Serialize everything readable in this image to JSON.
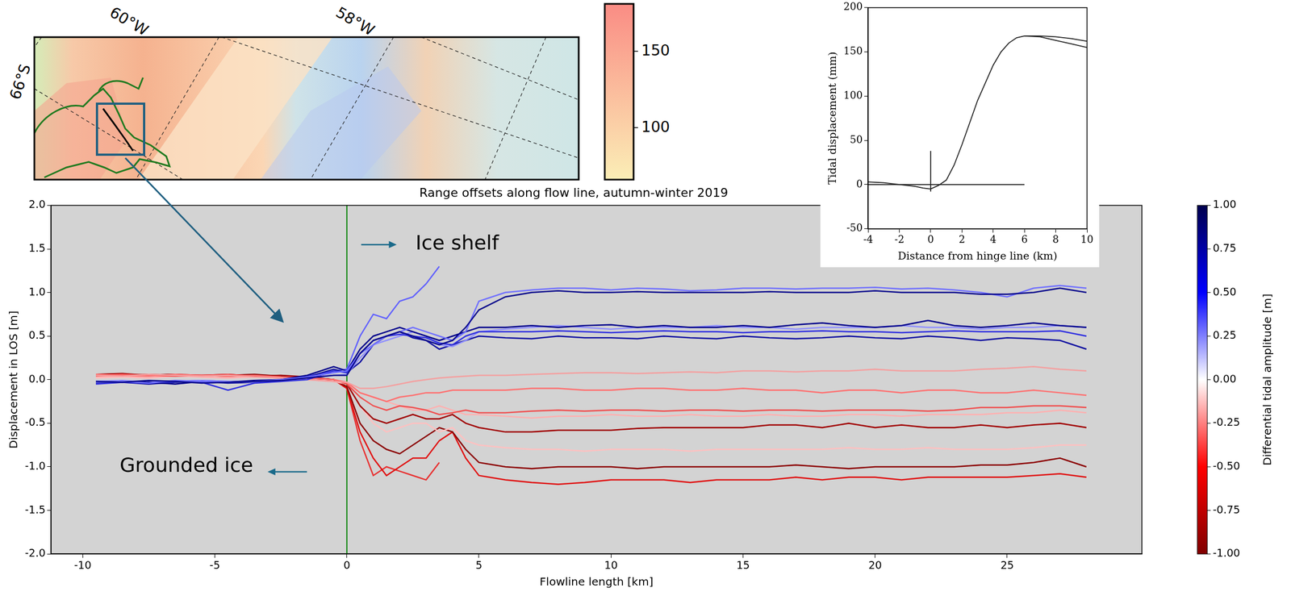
{
  "chart_data": [
    {
      "type": "line",
      "title": "Range offsets along flow line, autumn-winter 2019",
      "x_label": "Flowline length [km]",
      "y_label": "Displacement in LOS [m]",
      "xlim": [
        -11.2,
        30.1
      ],
      "xticks": [
        -10,
        -5,
        0,
        5,
        10,
        15,
        20,
        25
      ],
      "ylim": [
        -2,
        2
      ],
      "yticks": [
        {
          "value": -2,
          "label": "-2.0"
        },
        {
          "value": -1.5,
          "label": "-1.5"
        },
        {
          "value": -1,
          "label": "-1.0"
        },
        {
          "value": -0.5,
          "label": "-0.5"
        },
        {
          "value": 0,
          "label": "0.0"
        },
        {
          "value": 0.5,
          "label": "0.5"
        },
        {
          "value": 1,
          "label": "1.0"
        },
        {
          "value": 1.5,
          "label": "1.5"
        },
        {
          "value": 2,
          "label": "2.0"
        }
      ],
      "grid": false,
      "x": [
        -9.5,
        -8.5,
        -7.5,
        -6.5,
        -5.5,
        -4.5,
        -3.5,
        -2.5,
        -1.5,
        -0.5,
        0,
        0.5,
        1,
        1.5,
        2,
        2.5,
        3,
        3.5,
        4,
        4.5,
        5,
        6,
        7,
        8,
        9,
        10,
        11,
        12,
        13,
        14,
        15,
        16,
        17,
        18,
        19,
        20,
        21,
        22,
        23,
        24,
        25,
        26,
        27,
        28
      ],
      "series": [
        {
          "color": "#0a0a8c",
          "values": [
            -0.02,
            -0.03,
            -0.01,
            -0.02,
            -0.04,
            -0.03,
            -0.02,
            -0.01,
            0.02,
            0.05,
            0.05,
            0.3,
            0.45,
            0.5,
            0.55,
            0.5,
            0.45,
            0.4,
            0.45,
            0.6,
            0.8,
            0.95,
            1.0,
            1.02,
            1.0,
            1.0,
            1.01,
            1.0,
            1.0,
            1.0,
            1.0,
            1.01,
            1.0,
            1.0,
            1.0,
            1.02,
            1.0,
            1.0,
            1.0,
            0.98,
            0.98,
            1.0,
            1.05,
            1.0
          ]
        },
        {
          "color": "#7070ff",
          "values": [
            -0.03,
            -0.02,
            -0.04,
            -0.01,
            -0.02,
            -0.03,
            -0.02,
            0.0,
            0.03,
            0.08,
            0.1,
            0.3,
            0.4,
            0.5,
            0.55,
            0.6,
            0.55,
            0.5,
            0.45,
            0.55,
            0.9,
            1.0,
            1.03,
            1.05,
            1.05,
            1.03,
            1.05,
            1.04,
            1.02,
            1.03,
            1.05,
            1.05,
            1.04,
            1.05,
            1.05,
            1.06,
            1.04,
            1.05,
            1.03,
            1.0,
            0.95,
            1.05,
            1.08,
            1.05
          ]
        },
        {
          "color": "#00008b",
          "values": [
            -0.03,
            -0.02,
            -0.03,
            -0.05,
            -0.02,
            -0.03,
            -0.01,
            0.0,
            0.05,
            0.15,
            0.1,
            0.35,
            0.5,
            0.55,
            0.6,
            0.55,
            0.5,
            0.45,
            0.5,
            0.55,
            0.6,
            0.6,
            0.62,
            0.6,
            0.62,
            0.63,
            0.6,
            0.62,
            0.6,
            0.6,
            0.62,
            0.6,
            0.63,
            0.65,
            0.62,
            0.6,
            0.62,
            0.68,
            0.62,
            0.6,
            0.62,
            0.65,
            0.62,
            0.6
          ]
        },
        {
          "color": "#3030e0",
          "values": [
            -0.05,
            -0.03,
            -0.04,
            -0.02,
            -0.03,
            -0.12,
            -0.04,
            -0.02,
            0.0,
            0.1,
            0.08,
            0.3,
            0.45,
            0.5,
            0.52,
            0.5,
            0.48,
            0.42,
            0.4,
            0.5,
            0.55,
            0.55,
            0.55,
            0.56,
            0.55,
            0.54,
            0.55,
            0.56,
            0.55,
            0.55,
            0.54,
            0.55,
            0.55,
            0.56,
            0.55,
            0.55,
            0.54,
            0.55,
            0.56,
            0.55,
            0.55,
            0.55,
            0.56,
            0.5
          ]
        },
        {
          "color": "#9090ff",
          "values": [
            -0.02,
            -0.01,
            -0.03,
            -0.02,
            -0.01,
            -0.02,
            -0.03,
            0.0,
            0.02,
            0.05,
            0.06,
            0.25,
            0.4,
            0.45,
            0.5,
            0.55,
            0.5,
            0.4,
            0.38,
            0.45,
            0.55,
            0.58,
            0.6,
            0.62,
            0.6,
            0.58,
            0.6,
            0.6,
            0.6,
            0.62,
            0.6,
            0.6,
            0.58,
            0.6,
            0.6,
            0.6,
            0.62,
            0.6,
            0.6,
            0.58,
            0.6,
            0.6,
            0.62,
            0.6
          ]
        },
        {
          "color": "#1010a0",
          "values": [
            -0.04,
            -0.03,
            -0.05,
            -0.03,
            -0.02,
            -0.04,
            -0.03,
            -0.01,
            0.03,
            0.12,
            0.08,
            0.2,
            0.4,
            0.5,
            0.55,
            0.48,
            0.45,
            0.35,
            0.4,
            0.45,
            0.5,
            0.48,
            0.47,
            0.5,
            0.48,
            0.48,
            0.47,
            0.5,
            0.48,
            0.47,
            0.5,
            0.48,
            0.47,
            0.48,
            0.5,
            0.48,
            0.47,
            0.5,
            0.48,
            0.45,
            0.48,
            0.47,
            0.45,
            0.35
          ]
        },
        {
          "color": "#6060ff",
          "values": [
            -0.02,
            -0.02,
            -0.03,
            -0.02,
            -0.01,
            -0.02,
            -0.02,
            0.0,
            0.04,
            0.1,
            0.12,
            0.5,
            0.75,
            0.7,
            0.9,
            0.95,
            1.1,
            1.3,
            null,
            null,
            null,
            null,
            null,
            null,
            null,
            null,
            null,
            null,
            null,
            null,
            null,
            null,
            null,
            null,
            null,
            null,
            null,
            null,
            null,
            null,
            null,
            null,
            null,
            null
          ]
        },
        {
          "color": "#f4a0a0",
          "values": [
            0.05,
            0.04,
            0.06,
            0.05,
            0.04,
            0.05,
            0.03,
            0.02,
            0.0,
            -0.02,
            -0.03,
            -0.1,
            -0.1,
            -0.08,
            -0.05,
            -0.02,
            0.0,
            0.02,
            0.03,
            0.04,
            0.05,
            0.05,
            0.06,
            0.07,
            0.08,
            0.08,
            0.07,
            0.08,
            0.09,
            0.08,
            0.1,
            0.1,
            0.09,
            0.1,
            0.1,
            0.12,
            0.1,
            0.1,
            0.1,
            0.12,
            0.13,
            0.15,
            0.12,
            0.1
          ]
        },
        {
          "color": "#ff7070",
          "values": [
            0.06,
            0.05,
            0.04,
            0.06,
            0.05,
            0.04,
            0.05,
            0.03,
            0.02,
            0.0,
            -0.03,
            -0.15,
            -0.2,
            -0.25,
            -0.2,
            -0.18,
            -0.15,
            -0.15,
            -0.12,
            -0.12,
            -0.12,
            -0.12,
            -0.1,
            -0.1,
            -0.12,
            -0.12,
            -0.1,
            -0.1,
            -0.12,
            -0.12,
            -0.1,
            -0.12,
            -0.12,
            -0.15,
            -0.12,
            -0.12,
            -0.15,
            -0.12,
            -0.12,
            -0.15,
            -0.15,
            -0.12,
            -0.15,
            -0.18
          ]
        },
        {
          "color": "#f05050",
          "values": [
            0.05,
            0.06,
            0.05,
            0.04,
            0.05,
            0.06,
            0.04,
            0.03,
            0.02,
            0.0,
            -0.05,
            -0.2,
            -0.3,
            -0.35,
            -0.3,
            -0.32,
            -0.35,
            -0.4,
            -0.38,
            -0.35,
            -0.38,
            -0.38,
            -0.36,
            -0.35,
            -0.36,
            -0.35,
            -0.35,
            -0.36,
            -0.35,
            -0.35,
            -0.36,
            -0.35,
            -0.35,
            -0.36,
            -0.35,
            -0.35,
            -0.35,
            -0.36,
            -0.35,
            -0.32,
            -0.32,
            -0.3,
            -0.3,
            -0.32
          ]
        },
        {
          "color": "#ffb0b0",
          "values": [
            0.03,
            0.04,
            0.02,
            0.05,
            0.03,
            0.02,
            0.04,
            0.02,
            0.0,
            -0.02,
            -0.04,
            -0.15,
            -0.2,
            -0.25,
            -0.3,
            -0.35,
            -0.35,
            -0.3,
            -0.35,
            -0.4,
            -0.4,
            -0.42,
            -0.44,
            -0.42,
            -0.42,
            -0.4,
            -0.42,
            -0.42,
            -0.4,
            -0.42,
            -0.42,
            -0.4,
            -0.42,
            -0.42,
            -0.4,
            -0.4,
            -0.42,
            -0.4,
            -0.4,
            -0.4,
            -0.38,
            -0.38,
            -0.35,
            -0.38
          ]
        },
        {
          "color": "#a00000",
          "values": [
            0.06,
            0.07,
            0.05,
            0.06,
            0.05,
            0.06,
            0.04,
            0.05,
            0.03,
            0.0,
            -0.05,
            -0.3,
            -0.45,
            -0.5,
            -0.45,
            -0.4,
            -0.45,
            -0.45,
            -0.4,
            -0.5,
            -0.55,
            -0.6,
            -0.6,
            -0.58,
            -0.58,
            -0.58,
            -0.56,
            -0.55,
            -0.55,
            -0.55,
            -0.55,
            -0.52,
            -0.52,
            -0.55,
            -0.5,
            -0.55,
            -0.52,
            -0.55,
            -0.55,
            -0.52,
            -0.55,
            -0.52,
            -0.5,
            -0.55
          ]
        },
        {
          "color": "#ffc0c0",
          "values": [
            0.02,
            0.03,
            0.02,
            0.04,
            0.03,
            0.02,
            0.03,
            0.02,
            0.0,
            -0.02,
            -0.05,
            -0.3,
            -0.5,
            -0.6,
            -0.55,
            -0.5,
            -0.5,
            -0.6,
            -0.55,
            -0.7,
            -0.75,
            -0.78,
            -0.8,
            -0.8,
            -0.82,
            -0.8,
            -0.8,
            -0.8,
            -0.82,
            -0.8,
            -0.8,
            -0.8,
            -0.8,
            -0.8,
            -0.78,
            -0.8,
            -0.8,
            -0.78,
            -0.8,
            -0.8,
            -0.8,
            -0.78,
            -0.75,
            -0.75
          ]
        },
        {
          "color": "#8b0000",
          "values": [
            0.05,
            0.06,
            0.05,
            0.06,
            0.04,
            0.05,
            0.06,
            0.04,
            0.03,
            0.0,
            -0.08,
            -0.5,
            -0.7,
            -0.8,
            -0.85,
            -0.75,
            -0.65,
            -0.55,
            -0.6,
            -0.8,
            -0.95,
            -1.0,
            -1.02,
            -1.0,
            -1.0,
            -1.0,
            -1.02,
            -1.0,
            -1.0,
            -1.0,
            -1.0,
            -1.0,
            -0.98,
            -1.0,
            -1.02,
            -1.0,
            -1.0,
            -1.0,
            -1.0,
            -0.98,
            -0.98,
            -0.95,
            -0.9,
            -1.0
          ]
        },
        {
          "color": "#e01010",
          "values": [
            0.04,
            0.05,
            0.06,
            0.05,
            0.05,
            0.04,
            0.05,
            0.03,
            0.02,
            0.0,
            -0.1,
            -0.6,
            -0.9,
            -1.1,
            -1.0,
            -0.9,
            -0.9,
            -0.7,
            -0.6,
            -0.9,
            -1.1,
            -1.15,
            -1.18,
            -1.2,
            -1.18,
            -1.15,
            -1.15,
            -1.15,
            -1.18,
            -1.15,
            -1.15,
            -1.15,
            -1.12,
            -1.15,
            -1.12,
            -1.12,
            -1.15,
            -1.12,
            -1.12,
            -1.12,
            -1.12,
            -1.1,
            -1.08,
            -1.12
          ]
        },
        {
          "color": "#e83030",
          "values": [
            0.05,
            0.04,
            0.05,
            0.06,
            0.04,
            0.05,
            0.04,
            0.03,
            0.02,
            0.0,
            -0.1,
            -0.7,
            -1.1,
            -1.0,
            -1.05,
            -1.1,
            -1.15,
            -0.95,
            null,
            null,
            null,
            null,
            null,
            null,
            null,
            null,
            null,
            null,
            null,
            null,
            null,
            null,
            null,
            null,
            null,
            null,
            null,
            null,
            null,
            null,
            null,
            null,
            null,
            null
          ]
        }
      ],
      "vlines": [
        {
          "x": 0,
          "color": "#008000"
        }
      ],
      "annotations": [
        {
          "text": "Ice shelf",
          "x": 2.6,
          "y": 1.55,
          "arrow": "right"
        },
        {
          "text": "Grounded ice",
          "x": -8.6,
          "y": -1.0,
          "arrow": "left"
        }
      ],
      "colorbar": {
        "label": "Differential tidal amplitude [m]",
        "range": [
          -1,
          1
        ],
        "ticks": [
          {
            "value": -1,
            "label": "-1.00"
          },
          {
            "value": -0.75,
            "label": "-0.75"
          },
          {
            "value": -0.5,
            "label": "-0.50"
          },
          {
            "value": -0.25,
            "label": "-0.25"
          },
          {
            "value": 0,
            "label": "0.00"
          },
          {
            "value": 0.25,
            "label": "0.25"
          },
          {
            "value": 0.5,
            "label": "0.50"
          },
          {
            "value": 0.75,
            "label": "0.75"
          },
          {
            "value": 1,
            "label": "1.00"
          }
        ],
        "colors": [
          "#800000",
          "#ff0000",
          "#ffffff",
          "#0000ff",
          "#00004d"
        ]
      }
    },
    {
      "type": "line",
      "x_label": "Distance from hinge line (km)",
      "y_label": "Tidal displacement (mm)",
      "xlim": [
        -4,
        10
      ],
      "xticks": [
        -4,
        -2,
        0,
        2,
        4,
        6,
        8,
        10
      ],
      "ylim": [
        -50,
        200
      ],
      "yticks": [
        -50,
        0,
        50,
        100,
        150,
        200
      ],
      "grid": false,
      "series": [
        {
          "color": "#222222",
          "x": [
            -4,
            -3,
            -2,
            -1,
            -0.5,
            0,
            0.5,
            1,
            1.5,
            2,
            2.5,
            3,
            3.5,
            4,
            4.5,
            5,
            5.5,
            6,
            7,
            8,
            9,
            10
          ],
          "values": [
            3,
            2,
            0,
            -2,
            -4,
            -5,
            -1,
            5,
            22,
            45,
            70,
            95,
            115,
            135,
            150,
            160,
            166,
            168,
            168,
            167,
            165,
            162
          ]
        },
        {
          "color": "#222222",
          "x": [
            6,
            7,
            8,
            9,
            10
          ],
          "values": [
            168,
            167,
            163,
            159,
            155
          ]
        },
        {
          "color": "#222222",
          "x": [
            -4,
            6
          ],
          "values": [
            0,
            0
          ]
        },
        {
          "color": "#222222",
          "x": [
            0,
            0
          ],
          "values": [
            -8,
            38
          ]
        }
      ]
    }
  ],
  "map": {
    "graticule_labels": [
      "60°W",
      "58°W",
      "66°S"
    ],
    "colorbar": {
      "range": [
        66,
        181
      ],
      "ticks": [
        100,
        150
      ],
      "colors": [
        "#fbeeb6",
        "#fa8c84"
      ]
    }
  }
}
